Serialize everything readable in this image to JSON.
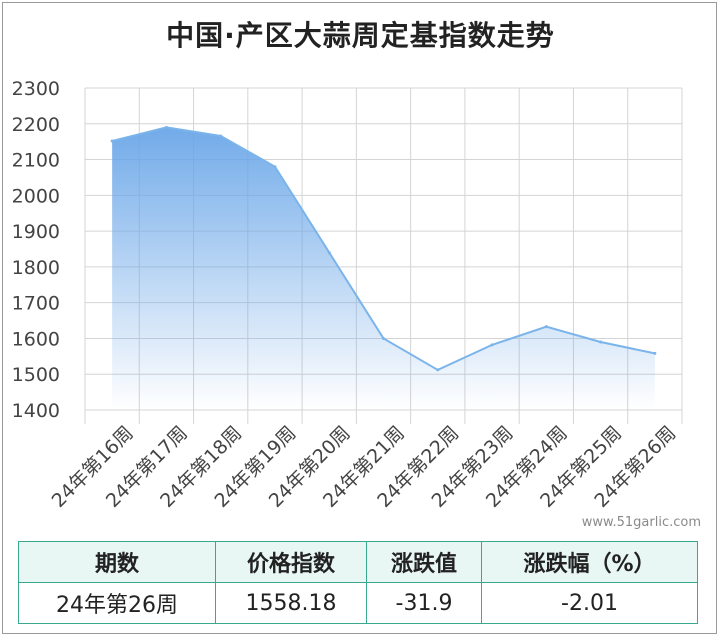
{
  "chart_data": {
    "type": "area",
    "title": "中国·产区大蒜周定基指数走势",
    "categories": [
      "24年第16周",
      "24年第17周",
      "24年第18周",
      "24年第19周",
      "24年第20周",
      "24年第21周",
      "24年第22周",
      "24年第23周",
      "24年第24周",
      "24年第25周",
      "24年第26周"
    ],
    "series": [
      {
        "values": [
          2152,
          2190,
          2166,
          2080,
          1840,
          1600,
          1512,
          1582,
          1633,
          1590,
          1558.18
        ]
      }
    ],
    "ylim": [
      1400,
      2300
    ],
    "yticks": [
      "1400",
      "1500",
      "1600",
      "1700",
      "1800",
      "1900",
      "2000",
      "2100",
      "2200",
      "2300"
    ],
    "grid": true,
    "colors": {
      "line": "#7ab4ea",
      "fill_top": "#6aa6e8",
      "grid": "#d4d4d4"
    }
  },
  "source": "www.51garlic.com",
  "table": {
    "headers": [
      "期数",
      "价格指数",
      "涨跌值",
      "涨跌幅（%）"
    ],
    "row": [
      "24年第26周",
      "1558.18",
      "-31.9",
      "-2.01"
    ]
  }
}
